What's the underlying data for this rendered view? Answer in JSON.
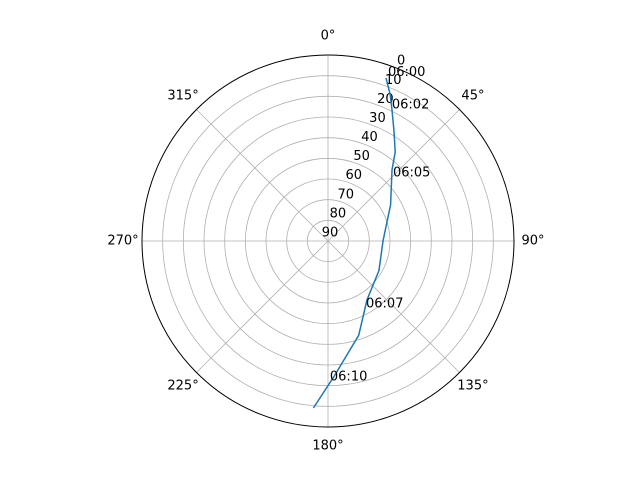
{
  "chart_data": {
    "type": "polar-line",
    "theta_zero": "N",
    "theta_direction": "clockwise",
    "rlim": [
      90,
      0
    ],
    "rticks": [
      0,
      10,
      20,
      30,
      40,
      50,
      60,
      70,
      80,
      90
    ],
    "thetaticks": [
      {
        "value": 0,
        "label": "0°"
      },
      {
        "value": 45,
        "label": "45°"
      },
      {
        "value": 90,
        "label": "90°"
      },
      {
        "value": 135,
        "label": "135°"
      },
      {
        "value": 180,
        "label": "180°"
      },
      {
        "value": 225,
        "label": "225°"
      },
      {
        "value": 270,
        "label": "270°"
      },
      {
        "value": 315,
        "label": "315°"
      }
    ],
    "grid": true,
    "series": [
      {
        "color": "#1f77b4",
        "theta": [
          19.6,
          23,
          26,
          31,
          37,
          42,
          60,
          90,
          120,
          146.5,
          162,
          177,
          185
        ],
        "values": [
          6.3,
          13,
          19.4,
          28,
          36,
          43.7,
          55,
          63.4,
          61.5,
          55.8,
          42,
          25.1,
          8.9
        ]
      }
    ],
    "annotations": [
      {
        "text": "06:00",
        "theta": 19.6,
        "r": 3.5
      },
      {
        "text": "06:02",
        "theta": 25.2,
        "r": 17.4
      },
      {
        "text": "06:05",
        "theta": 43.7,
        "r": 44.5
      },
      {
        "text": "06:07",
        "theta": 148.9,
        "r": 54.4
      },
      {
        "text": "06:10",
        "theta": 179.2,
        "r": 24.2
      }
    ]
  }
}
